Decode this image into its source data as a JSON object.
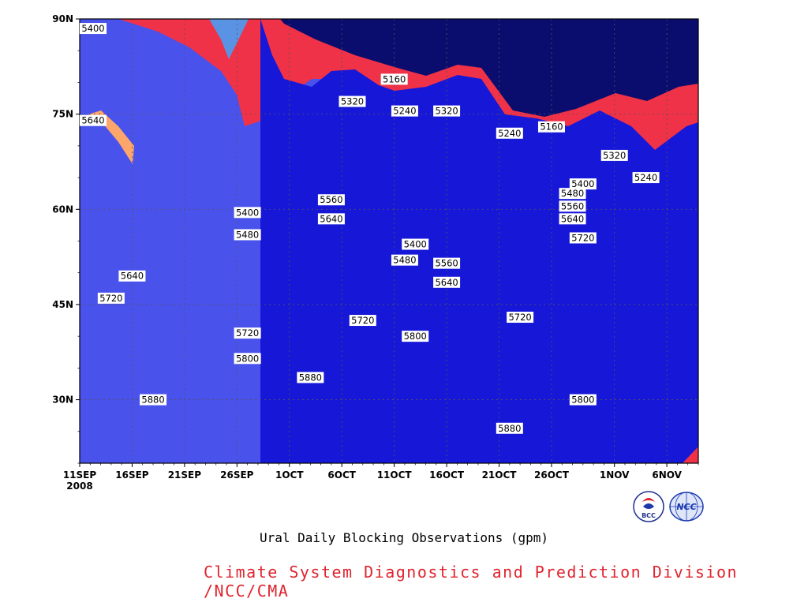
{
  "chart_data": {
    "type": "heatmap",
    "title": "Ural Daily Blocking Observations (gpm)",
    "x_axis": {
      "tick_labels": [
        "11SEP",
        "16SEP",
        "21SEP",
        "26SEP",
        "1OCT",
        "6OCT",
        "11OCT",
        "16OCT",
        "21OCT",
        "26OCT",
        "1NOV",
        "6NOV"
      ],
      "year_label": "2008",
      "range": [
        "2008-09-11",
        "2008-11-09"
      ]
    },
    "y_axis": {
      "tick_labels": [
        "30N",
        "45N",
        "60N",
        "75N",
        "90N"
      ],
      "ticks": [
        30,
        45,
        60,
        75,
        90
      ],
      "range": [
        20,
        90
      ],
      "units": "latitude"
    },
    "grid": true,
    "contour_levels": [
      5160,
      5240,
      5320,
      5400,
      5480,
      5560,
      5640,
      5720,
      5800,
      5880
    ],
    "fill_colors": [
      "#0b0d6e",
      "#1717d8",
      "#4a52ec",
      "#5a93e3",
      "#5ec6fb",
      "#fbf56e",
      "#fde4a2",
      "#fca66b",
      "#fc7645",
      "#f66c7c",
      "#ef3247"
    ],
    "contour_labels": [
      {
        "text": "5400",
        "x": "2008-09-11",
        "y": 88.5
      },
      {
        "text": "5640",
        "x": "2008-09-12",
        "y": 74.0
      },
      {
        "text": "5640",
        "x": "2008-09-16",
        "y": 49.5
      },
      {
        "text": "5720",
        "x": "2008-09-14",
        "y": 46.0
      },
      {
        "text": "5880",
        "x": "2008-09-18",
        "y": 30.0
      },
      {
        "text": "5400",
        "x": "2008-09-27",
        "y": 59.5
      },
      {
        "text": "5480",
        "x": "2008-09-27",
        "y": 56.0
      },
      {
        "text": "5720",
        "x": "2008-09-27",
        "y": 40.5
      },
      {
        "text": "5800",
        "x": "2008-09-27",
        "y": 36.5
      },
      {
        "text": "5880",
        "x": "2008-10-03",
        "y": 33.5
      },
      {
        "text": "5560",
        "x": "2008-10-05",
        "y": 61.5
      },
      {
        "text": "5640",
        "x": "2008-10-05",
        "y": 58.5
      },
      {
        "text": "5320",
        "x": "2008-10-07",
        "y": 77.0
      },
      {
        "text": "5720",
        "x": "2008-10-08",
        "y": 42.5
      },
      {
        "text": "5160",
        "x": "2008-10-11",
        "y": 80.5
      },
      {
        "text": "5240",
        "x": "2008-10-12",
        "y": 75.5
      },
      {
        "text": "5320",
        "x": "2008-10-16",
        "y": 75.5
      },
      {
        "text": "5400",
        "x": "2008-10-13",
        "y": 54.5
      },
      {
        "text": "5480",
        "x": "2008-10-12",
        "y": 52.0
      },
      {
        "text": "5560",
        "x": "2008-10-16",
        "y": 51.5
      },
      {
        "text": "5640",
        "x": "2008-10-16",
        "y": 48.5
      },
      {
        "text": "5800",
        "x": "2008-10-13",
        "y": 40.0
      },
      {
        "text": "5720",
        "x": "2008-10-23",
        "y": 43.0
      },
      {
        "text": "5880",
        "x": "2008-10-22",
        "y": 25.5
      },
      {
        "text": "5240",
        "x": "2008-10-22",
        "y": 72.0
      },
      {
        "text": "5160",
        "x": "2008-10-26",
        "y": 73.0
      },
      {
        "text": "5400",
        "x": "2008-10-29",
        "y": 64.0
      },
      {
        "text": "5480",
        "x": "2008-10-28",
        "y": 62.5
      },
      {
        "text": "5560",
        "x": "2008-10-28",
        "y": 60.5
      },
      {
        "text": "5640",
        "x": "2008-10-28",
        "y": 58.5
      },
      {
        "text": "5720",
        "x": "2008-10-29",
        "y": 55.5
      },
      {
        "text": "5800",
        "x": "2008-10-29",
        "y": 30.0
      },
      {
        "text": "5320",
        "x": "2008-11-01",
        "y": 68.5
      },
      {
        "text": "5240",
        "x": "2008-11-04",
        "y": 65.0
      }
    ]
  },
  "footer": {
    "credit": "Climate System Diagnostics and Prediction Division /NCC/CMA",
    "logos": [
      {
        "icon": "bcc-logo-icon",
        "text": "BCC"
      },
      {
        "icon": "ncc-logo-icon",
        "text": "NCC"
      }
    ]
  }
}
